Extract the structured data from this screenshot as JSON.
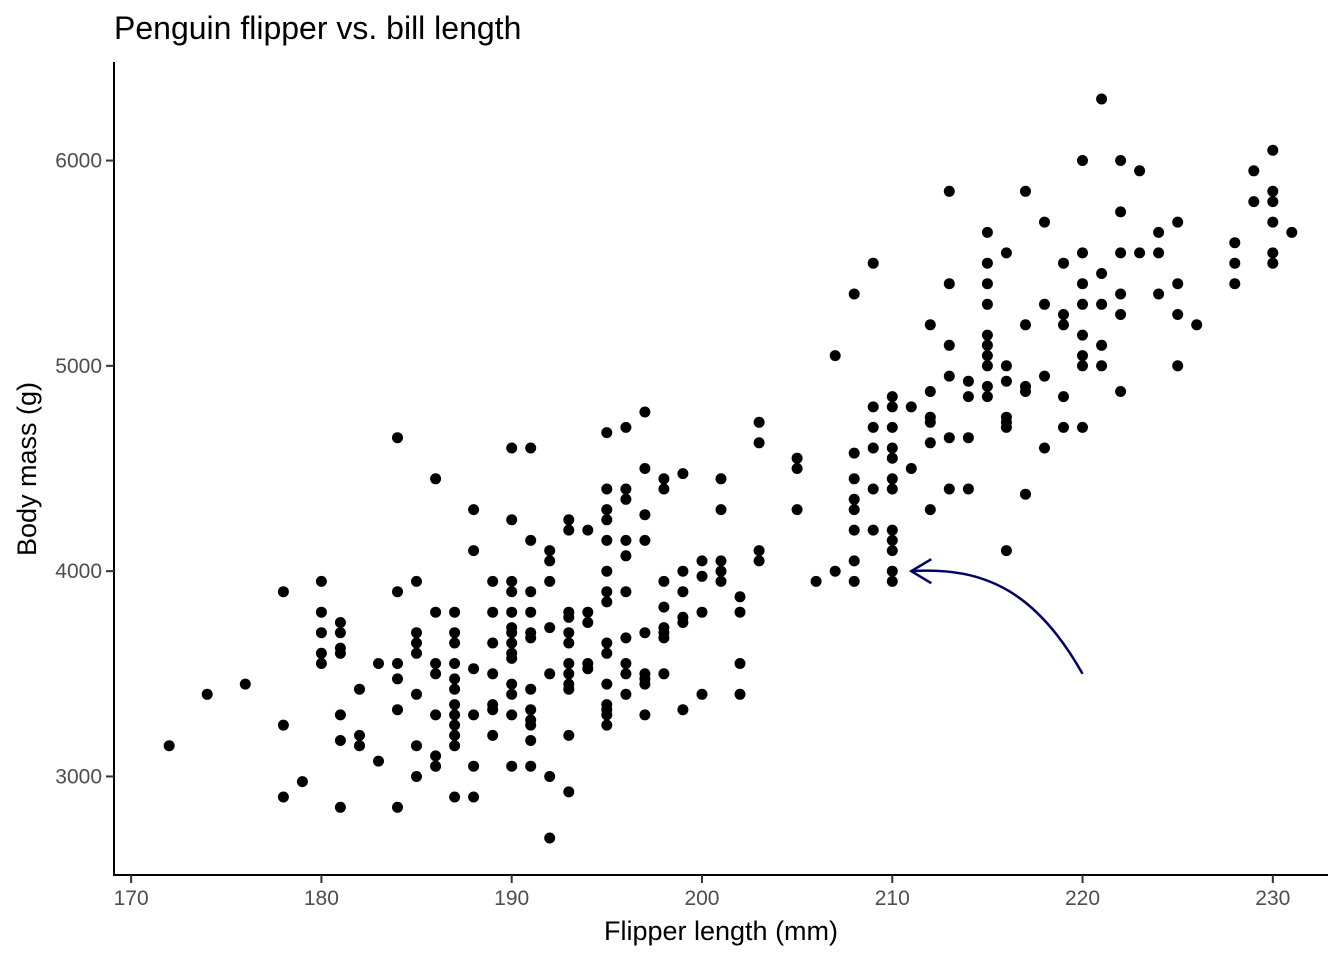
{
  "colors": {
    "background": "#ffffff",
    "point": "#000000",
    "arrow": "#000066",
    "axis": "#000000",
    "tick_text": "#4d4d4d"
  },
  "chart_data": {
    "type": "scatter",
    "title": "Penguin flipper vs. bill length",
    "xlabel": "Flipper length (mm)",
    "ylabel": "Body mass (g)",
    "xlim": [
      169.1,
      232.9
    ],
    "ylim": [
      2520,
      6480
    ],
    "x_ticks": [
      "170",
      "180",
      "190",
      "200",
      "210",
      "220",
      "230"
    ],
    "y_ticks": [
      "3000",
      "4000",
      "5000",
      "6000"
    ],
    "grid": false,
    "legend": "none",
    "annotation": {
      "type": "curved-arrow",
      "from": [
        220,
        3500
      ],
      "to": [
        211,
        4000
      ]
    },
    "points": [
      [
        172,
        3150
      ],
      [
        174,
        3400
      ],
      [
        176,
        3450
      ],
      [
        178,
        3250
      ],
      [
        178,
        2900
      ],
      [
        178,
        3900
      ],
      [
        179,
        2975
      ],
      [
        180,
        3950
      ],
      [
        180,
        3800
      ],
      [
        180,
        3700
      ],
      [
        180,
        3600
      ],
      [
        180,
        3550
      ],
      [
        181,
        3750
      ],
      [
        181,
        3700
      ],
      [
        181,
        3625
      ],
      [
        181,
        3600
      ],
      [
        181,
        3300
      ],
      [
        181,
        3175
      ],
      [
        181,
        2850
      ],
      [
        182,
        3425
      ],
      [
        182,
        3200
      ],
      [
        182,
        3150
      ],
      [
        183,
        3550
      ],
      [
        183,
        3075
      ],
      [
        184,
        4650
      ],
      [
        184,
        3900
      ],
      [
        184,
        3550
      ],
      [
        184,
        3475
      ],
      [
        184,
        3325
      ],
      [
        184,
        2850
      ],
      [
        185,
        3950
      ],
      [
        185,
        3700
      ],
      [
        185,
        3650
      ],
      [
        185,
        3600
      ],
      [
        185,
        3400
      ],
      [
        185,
        3150
      ],
      [
        185,
        3000
      ],
      [
        186,
        4450
      ],
      [
        186,
        3800
      ],
      [
        186,
        3550
      ],
      [
        186,
        3500
      ],
      [
        186,
        3300
      ],
      [
        186,
        3100
      ],
      [
        186,
        3050
      ],
      [
        187,
        3800
      ],
      [
        187,
        3700
      ],
      [
        187,
        3650
      ],
      [
        187,
        3550
      ],
      [
        187,
        3475
      ],
      [
        187,
        3425
      ],
      [
        187,
        3350
      ],
      [
        187,
        3300
      ],
      [
        187,
        3250
      ],
      [
        187,
        3200
      ],
      [
        187,
        3150
      ],
      [
        187,
        2900
      ],
      [
        188,
        4300
      ],
      [
        188,
        4100
      ],
      [
        188,
        3525
      ],
      [
        188,
        3300
      ],
      [
        188,
        3050
      ],
      [
        188,
        2900
      ],
      [
        189,
        3950
      ],
      [
        189,
        3800
      ],
      [
        189,
        3650
      ],
      [
        189,
        3500
      ],
      [
        189,
        3350
      ],
      [
        189,
        3325
      ],
      [
        189,
        3200
      ],
      [
        190,
        4600
      ],
      [
        190,
        4250
      ],
      [
        190,
        3950
      ],
      [
        190,
        3900
      ],
      [
        190,
        3800
      ],
      [
        190,
        3725
      ],
      [
        190,
        3700
      ],
      [
        190,
        3650
      ],
      [
        190,
        3600
      ],
      [
        190,
        3575
      ],
      [
        190,
        3450
      ],
      [
        190,
        3400
      ],
      [
        190,
        3300
      ],
      [
        190,
        3050
      ],
      [
        191,
        4600
      ],
      [
        191,
        4150
      ],
      [
        191,
        3900
      ],
      [
        191,
        3800
      ],
      [
        191,
        3700
      ],
      [
        191,
        3675
      ],
      [
        191,
        3425
      ],
      [
        191,
        3325
      ],
      [
        191,
        3275
      ],
      [
        191,
        3250
      ],
      [
        191,
        3175
      ],
      [
        191,
        3050
      ],
      [
        192,
        4100
      ],
      [
        192,
        4050
      ],
      [
        192,
        3950
      ],
      [
        192,
        3725
      ],
      [
        192,
        3500
      ],
      [
        192,
        3000
      ],
      [
        192,
        2700
      ],
      [
        193,
        4250
      ],
      [
        193,
        4200
      ],
      [
        193,
        3800
      ],
      [
        193,
        3775
      ],
      [
        193,
        3700
      ],
      [
        193,
        3650
      ],
      [
        193,
        3550
      ],
      [
        193,
        3500
      ],
      [
        193,
        3450
      ],
      [
        193,
        3425
      ],
      [
        193,
        3200
      ],
      [
        193,
        2925
      ],
      [
        194,
        4200
      ],
      [
        194,
        3800
      ],
      [
        194,
        3750
      ],
      [
        194,
        3550
      ],
      [
        194,
        3525
      ],
      [
        195,
        4675
      ],
      [
        195,
        4400
      ],
      [
        195,
        4300
      ],
      [
        195,
        4250
      ],
      [
        195,
        4150
      ],
      [
        195,
        4000
      ],
      [
        195,
        3900
      ],
      [
        195,
        3850
      ],
      [
        195,
        3650
      ],
      [
        195,
        3600
      ],
      [
        195,
        3450
      ],
      [
        195,
        3350
      ],
      [
        195,
        3325
      ],
      [
        195,
        3300
      ],
      [
        195,
        3250
      ],
      [
        196,
        4700
      ],
      [
        196,
        4400
      ],
      [
        196,
        4350
      ],
      [
        196,
        4150
      ],
      [
        196,
        4075
      ],
      [
        196,
        3900
      ],
      [
        196,
        3675
      ],
      [
        196,
        3550
      ],
      [
        196,
        3500
      ],
      [
        196,
        3400
      ],
      [
        197,
        4775
      ],
      [
        197,
        4500
      ],
      [
        197,
        4275
      ],
      [
        197,
        4150
      ],
      [
        197,
        3700
      ],
      [
        197,
        3500
      ],
      [
        197,
        3475
      ],
      [
        197,
        3450
      ],
      [
        197,
        3300
      ],
      [
        198,
        4450
      ],
      [
        198,
        4400
      ],
      [
        198,
        3950
      ],
      [
        198,
        3825
      ],
      [
        198,
        3725
      ],
      [
        198,
        3700
      ],
      [
        198,
        3675
      ],
      [
        198,
        3500
      ],
      [
        199,
        4475
      ],
      [
        199,
        4000
      ],
      [
        199,
        3900
      ],
      [
        199,
        3775
      ],
      [
        199,
        3750
      ],
      [
        199,
        3325
      ],
      [
        200,
        4050
      ],
      [
        200,
        3975
      ],
      [
        200,
        3800
      ],
      [
        200,
        3400
      ],
      [
        201,
        4450
      ],
      [
        201,
        4300
      ],
      [
        201,
        4050
      ],
      [
        201,
        4000
      ],
      [
        201,
        3950
      ],
      [
        202,
        3875
      ],
      [
        202,
        3800
      ],
      [
        202,
        3550
      ],
      [
        202,
        3400
      ],
      [
        203,
        4725
      ],
      [
        203,
        4625
      ],
      [
        203,
        4100
      ],
      [
        203,
        4050
      ],
      [
        205,
        4550
      ],
      [
        205,
        4500
      ],
      [
        205,
        4300
      ],
      [
        206,
        3950
      ],
      [
        207,
        5050
      ],
      [
        207,
        4000
      ],
      [
        208,
        5350
      ],
      [
        208,
        4575
      ],
      [
        208,
        4450
      ],
      [
        208,
        4350
      ],
      [
        208,
        4300
      ],
      [
        208,
        4200
      ],
      [
        208,
        4050
      ],
      [
        208,
        3950
      ],
      [
        209,
        5500
      ],
      [
        209,
        4800
      ],
      [
        209,
        4700
      ],
      [
        209,
        4600
      ],
      [
        209,
        4400
      ],
      [
        209,
        4200
      ],
      [
        210,
        4850
      ],
      [
        210,
        4800
      ],
      [
        210,
        4700
      ],
      [
        210,
        4600
      ],
      [
        210,
        4550
      ],
      [
        210,
        4450
      ],
      [
        210,
        4400
      ],
      [
        210,
        4200
      ],
      [
        210,
        4150
      ],
      [
        210,
        4100
      ],
      [
        210,
        4000
      ],
      [
        210,
        3950
      ],
      [
        211,
        4800
      ],
      [
        211,
        4500
      ],
      [
        212,
        5200
      ],
      [
        212,
        4875
      ],
      [
        212,
        4750
      ],
      [
        212,
        4725
      ],
      [
        212,
        4625
      ],
      [
        212,
        4300
      ],
      [
        213,
        5850
      ],
      [
        213,
        5400
      ],
      [
        213,
        5100
      ],
      [
        213,
        4950
      ],
      [
        213,
        4650
      ],
      [
        213,
        4400
      ],
      [
        214,
        4925
      ],
      [
        214,
        4850
      ],
      [
        214,
        4650
      ],
      [
        214,
        4400
      ],
      [
        215,
        5650
      ],
      [
        215,
        5500
      ],
      [
        215,
        5400
      ],
      [
        215,
        5300
      ],
      [
        215,
        5150
      ],
      [
        215,
        5100
      ],
      [
        215,
        5050
      ],
      [
        215,
        5000
      ],
      [
        215,
        4900
      ],
      [
        215,
        4850
      ],
      [
        216,
        5550
      ],
      [
        216,
        5000
      ],
      [
        216,
        4925
      ],
      [
        216,
        4750
      ],
      [
        216,
        4725
      ],
      [
        216,
        4700
      ],
      [
        216,
        4100
      ],
      [
        217,
        5850
      ],
      [
        217,
        5200
      ],
      [
        217,
        4900
      ],
      [
        217,
        4875
      ],
      [
        217,
        4375
      ],
      [
        218,
        5700
      ],
      [
        218,
        5300
      ],
      [
        218,
        4950
      ],
      [
        218,
        4600
      ],
      [
        219,
        5500
      ],
      [
        219,
        5250
      ],
      [
        219,
        5200
      ],
      [
        219,
        4850
      ],
      [
        219,
        4700
      ],
      [
        220,
        6000
      ],
      [
        220,
        5550
      ],
      [
        220,
        5400
      ],
      [
        220,
        5300
      ],
      [
        220,
        5150
      ],
      [
        220,
        5050
      ],
      [
        220,
        5000
      ],
      [
        220,
        4700
      ],
      [
        221,
        6300
      ],
      [
        221,
        5450
      ],
      [
        221,
        5300
      ],
      [
        221,
        5100
      ],
      [
        221,
        5000
      ],
      [
        222,
        6000
      ],
      [
        222,
        5750
      ],
      [
        222,
        5550
      ],
      [
        222,
        5350
      ],
      [
        222,
        5250
      ],
      [
        222,
        4875
      ],
      [
        223,
        5950
      ],
      [
        223,
        5550
      ],
      [
        224,
        5650
      ],
      [
        224,
        5550
      ],
      [
        224,
        5350
      ],
      [
        225,
        5700
      ],
      [
        225,
        5400
      ],
      [
        225,
        5250
      ],
      [
        225,
        5000
      ],
      [
        226,
        5200
      ],
      [
        228,
        5600
      ],
      [
        228,
        5500
      ],
      [
        228,
        5400
      ],
      [
        229,
        5950
      ],
      [
        229,
        5800
      ],
      [
        230,
        6050
      ],
      [
        230,
        5850
      ],
      [
        230,
        5800
      ],
      [
        230,
        5700
      ],
      [
        230,
        5550
      ],
      [
        230,
        5500
      ],
      [
        231,
        5650
      ]
    ]
  }
}
